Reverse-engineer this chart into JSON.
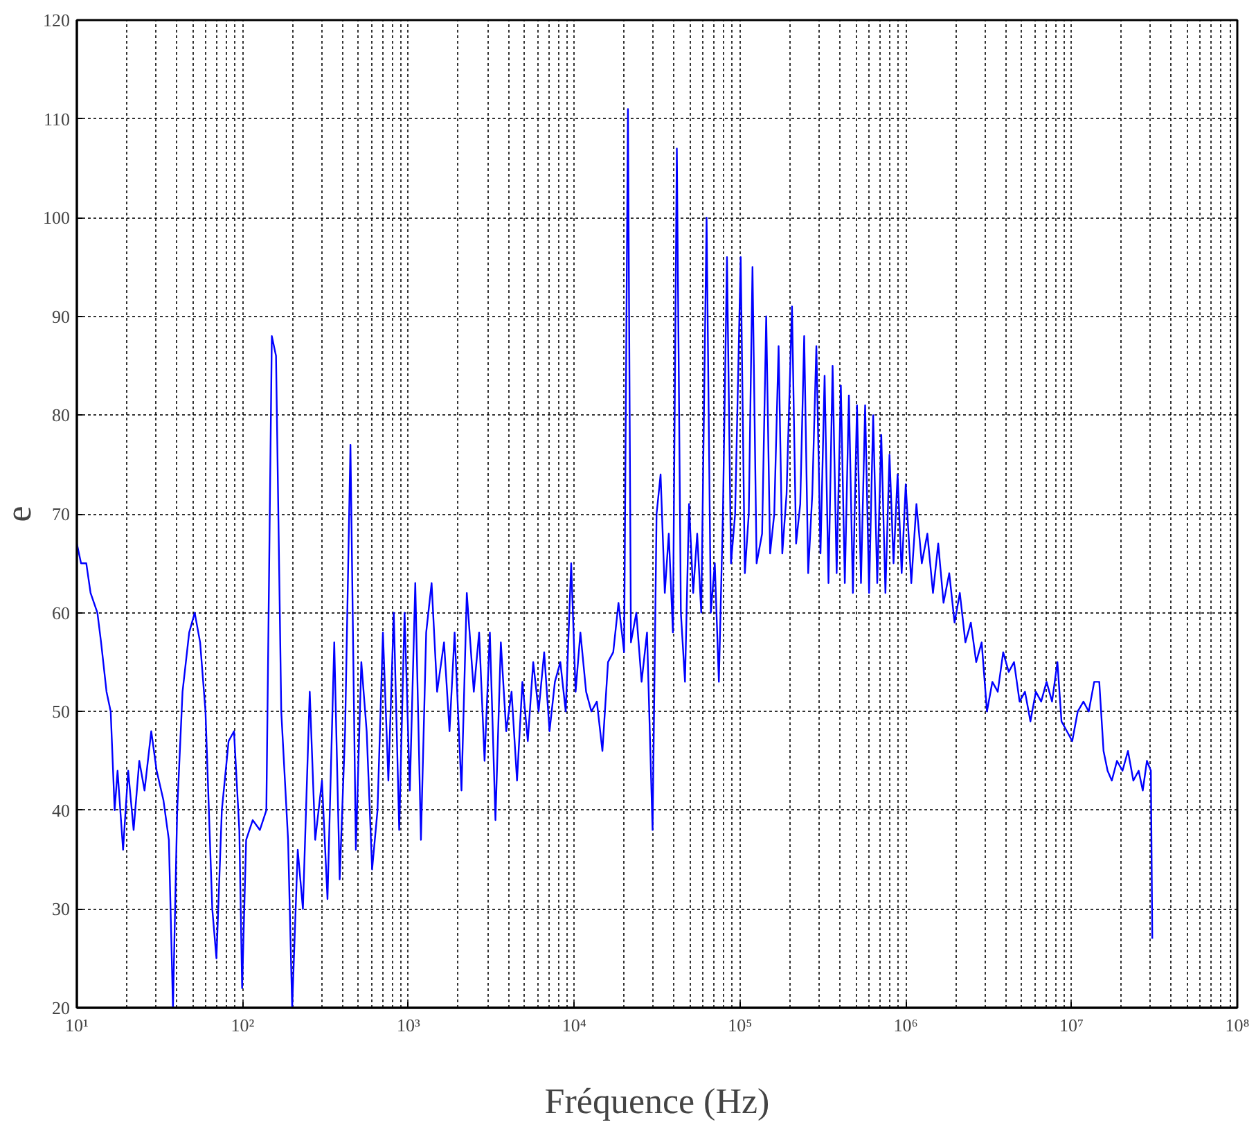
{
  "chart_data": {
    "type": "line",
    "xlabel": "Fréquence (Hz)",
    "ylabel": "e",
    "log": "x",
    "grid": true,
    "marker": "none",
    "line_style": "solid",
    "xlim": [
      10,
      100000000
    ],
    "ylim": [
      20,
      120
    ],
    "xticks": [
      {
        "value": 10,
        "label": "10¹"
      },
      {
        "value": 100,
        "label": "10²"
      },
      {
        "value": 1000,
        "label": "10³"
      },
      {
        "value": 10000,
        "label": "10⁴"
      },
      {
        "value": 100000,
        "label": "10⁵"
      },
      {
        "value": 1000000,
        "label": "10⁶"
      },
      {
        "value": 10000000,
        "label": "10⁷"
      },
      {
        "value": 100000000,
        "label": "10⁸"
      }
    ],
    "yticks": [
      20,
      30,
      40,
      50,
      60,
      70,
      80,
      90,
      100,
      110,
      120
    ],
    "series": [
      {
        "color": "#0000ff",
        "x": [
          10,
          10.6,
          11.4,
          12.1,
          13.3,
          14.0,
          15.1,
          16.0,
          16.9,
          17.6,
          19.0,
          20.4,
          22.0,
          23.8,
          25.6,
          28.1,
          30.3,
          33.3,
          35.9,
          38.0,
          40.3,
          43.4,
          47.6,
          51.4,
          55.4,
          59.7,
          65.6,
          69.5,
          74.9,
          82.3,
          88.7,
          95.5,
          99.3,
          105,
          115,
          127,
          139,
          150,
          159,
          171,
          188,
          199,
          215,
          231,
          254,
          274,
          301,
          325,
          357,
          385,
          415,
          447,
          482,
          520,
          560,
          604,
          651,
          702,
          757,
          816,
          880,
          948,
          1020,
          1100,
          1190,
          1280,
          1380,
          1490,
          1640,
          1770,
          1900,
          2090,
          2250,
          2480,
          2670,
          2880,
          3100,
          3350,
          3610,
          3890,
          4190,
          4520,
          4870,
          5250,
          5660,
          6100,
          6590,
          7100,
          7650,
          8250,
          8890,
          9590,
          10200,
          10900,
          11800,
          12700,
          13700,
          14800,
          16000,
          17200,
          18500,
          20000,
          21100,
          22000,
          23700,
          25500,
          27500,
          29700,
          31400,
          33200,
          35200,
          37200,
          39400,
          41600,
          44000,
          46600,
          49300,
          52200,
          55200,
          58400,
          62900,
          66700,
          70500,
          74600,
          78900,
          83500,
          88300,
          93500,
          101000,
          107000,
          113000,
          119000,
          126000,
          136000,
          144000,
          152000,
          161000,
          171000,
          180000,
          191000,
          206000,
          218000,
          231000,
          244000,
          258000,
          273000,
          289000,
          306000,
          324000,
          342000,
          362000,
          383000,
          406000,
          429000,
          454000,
          480000,
          508000,
          537000,
          569000,
          601000,
          636000,
          673000,
          712000,
          754000,
          798000,
          844000,
          893000,
          945000,
          1000000,
          1080000,
          1160000,
          1250000,
          1350000,
          1460000,
          1570000,
          1690000,
          1830000,
          1970000,
          2120000,
          2290000,
          2470000,
          2660000,
          2870000,
          3090000,
          3330000,
          3590000,
          3870000,
          4180000,
          4500000,
          4860000,
          5240000,
          5650000,
          6090000,
          6560000,
          7070000,
          7630000,
          8220000,
          8700000,
          9380000,
          10100000,
          10900000,
          11800000,
          12700000,
          13700000,
          14700000,
          15600000,
          16500000,
          17500000,
          18800000,
          20300000,
          21900000,
          23600000,
          25400000,
          26900000,
          28500000,
          30100000,
          30700000
        ],
        "values": [
          67,
          65,
          65,
          62,
          60,
          57,
          52,
          50,
          40,
          44,
          36,
          44,
          38,
          45,
          42,
          48,
          44,
          41,
          37,
          20,
          40,
          52,
          58,
          60,
          57,
          50,
          30,
          25,
          40,
          47,
          48,
          38,
          22,
          37,
          39,
          38,
          40,
          88,
          86,
          50,
          37,
          20,
          36,
          30,
          52,
          37,
          43,
          31,
          57,
          33,
          48,
          77,
          36,
          55,
          48,
          34,
          40,
          58,
          43,
          60,
          38,
          60,
          42,
          63,
          37,
          58,
          63,
          52,
          57,
          48,
          58,
          42,
          62,
          52,
          58,
          45,
          58,
          39,
          57,
          48,
          52,
          43,
          53,
          47,
          55,
          50,
          56,
          48,
          53,
          55,
          50,
          65,
          52,
          58,
          52,
          50,
          51,
          46,
          55,
          56,
          61,
          56,
          111,
          57,
          60,
          53,
          58,
          38,
          70,
          74,
          62,
          68,
          58,
          107,
          60,
          53,
          71,
          62,
          68,
          60,
          100,
          60,
          65,
          53,
          70,
          96,
          65,
          70,
          96,
          64,
          70,
          95,
          65,
          68,
          90,
          66,
          70,
          87,
          66,
          72,
          91,
          67,
          71,
          88,
          64,
          72,
          87,
          66,
          84,
          63,
          85,
          64,
          83,
          63,
          82,
          62,
          81,
          63,
          81,
          62,
          80,
          63,
          78,
          62,
          76,
          65,
          74,
          64,
          73,
          63,
          71,
          65,
          68,
          62,
          67,
          61,
          64,
          59,
          62,
          57,
          59,
          55,
          57,
          50,
          53,
          52,
          56,
          54,
          55,
          51,
          52,
          49,
          52,
          51,
          53,
          51,
          55,
          49,
          48,
          47,
          50,
          51,
          50,
          53,
          53,
          46,
          44,
          43,
          45,
          44,
          46,
          43,
          44,
          42,
          45,
          44,
          27
        ]
      }
    ]
  }
}
